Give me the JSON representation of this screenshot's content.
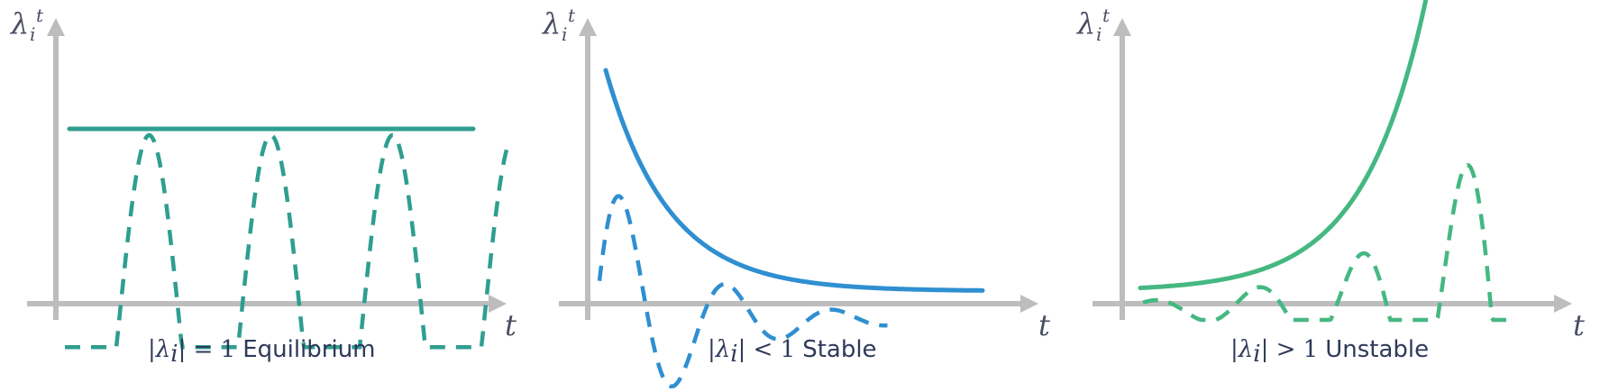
{
  "colors": {
    "axis": "#bdbdbd",
    "equilibrium": "#2f9e8f",
    "stable": "#2f8fd1",
    "unstable": "#45b882",
    "text": "#2f3a5a"
  },
  "panels": [
    {
      "id": "equilibrium",
      "y_axis_label": "λ",
      "y_axis_sub": "i",
      "y_axis_sup": "t",
      "x_axis_label": "t",
      "caption_condition_left": "|",
      "caption_lambda": "λ",
      "caption_sub": "i",
      "caption_condition_right": "| = 1",
      "caption_word": "Equilibrium",
      "envelope": "constant",
      "color_key": "equilibrium"
    },
    {
      "id": "stable",
      "y_axis_label": "λ",
      "y_axis_sub": "i",
      "y_axis_sup": "t",
      "x_axis_label": "t",
      "caption_condition_left": "|",
      "caption_lambda": "λ",
      "caption_sub": "i",
      "caption_condition_right": "| < 1",
      "caption_word": "Stable",
      "envelope": "decaying",
      "color_key": "stable"
    },
    {
      "id": "unstable",
      "y_axis_label": "λ",
      "y_axis_sub": "i",
      "y_axis_sup": "t",
      "x_axis_label": "t",
      "caption_condition_left": "|",
      "caption_lambda": "λ",
      "caption_sub": "i",
      "caption_condition_right": "| > 1",
      "caption_word": "Unstable",
      "envelope": "growing",
      "color_key": "unstable"
    }
  ]
}
